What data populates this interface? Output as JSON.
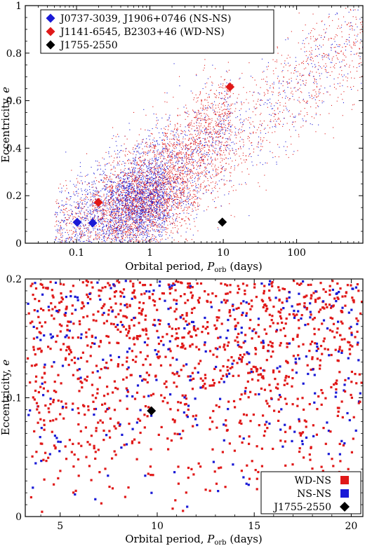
{
  "colors": {
    "ns_ns": "#1a1ad6",
    "wd_ns": "#e01818",
    "j1755": "#000000"
  },
  "chart_data": [
    {
      "type": "scatter",
      "title": "",
      "xlabel": "Orbital period, ",
      "xlabel_sym": "P",
      "xlabel_sub": "orb",
      "xlabel_unit": " (days)",
      "ylabel": "Eccentricity, ",
      "ylabel_sym": "e",
      "xscale": "log",
      "xlim": [
        0.02,
        800
      ],
      "ylim": [
        0,
        1
      ],
      "xticks": [
        0.1,
        1,
        10,
        100
      ],
      "xtick_labels": [
        "0.1",
        "1",
        "10",
        "100"
      ],
      "yticks": [
        0,
        0.2,
        0.4,
        0.6,
        0.8,
        1
      ],
      "ytick_labels": [
        "0",
        "0.2",
        "0.4",
        "0.6",
        "0.8",
        "1"
      ],
      "legend_position": "top-left",
      "legend": [
        {
          "label": "J0737-3039, J1906+0746 (NS-NS)",
          "color": "#1a1ad6",
          "marker": "diamond"
        },
        {
          "label": "J1141-6545, B2303+46 (WD-NS)",
          "color": "#e01818",
          "marker": "diamond"
        },
        {
          "label": "J1755-2550",
          "color": "#000000",
          "marker": "diamond"
        }
      ],
      "series": [
        {
          "name": "J0737-3039, J1906+0746 (NS-NS)",
          "color": "#1a1ad6",
          "x": [
            0.102,
            0.166
          ],
          "y": [
            0.088,
            0.085
          ]
        },
        {
          "name": "J1141-6545, B2303+46 (WD-NS)",
          "color": "#e01818",
          "x": [
            0.198,
            12.34
          ],
          "y": [
            0.172,
            0.658
          ]
        },
        {
          "name": "J1755-2550",
          "color": "#000000",
          "x": [
            9.7
          ],
          "y": [
            0.089
          ]
        }
      ]
    },
    {
      "type": "scatter",
      "title": "",
      "xlabel": "Orbital period, ",
      "xlabel_sym": "P",
      "xlabel_sub": "orb",
      "xlabel_unit": " (days)",
      "ylabel": "Eccentricity, ",
      "ylabel_sym": "e",
      "xscale": "linear",
      "xlim": [
        3.2,
        20.6
      ],
      "ylim": [
        0,
        0.2
      ],
      "xticks": [
        5,
        10,
        15,
        20
      ],
      "xtick_labels": [
        "5",
        "10",
        "15",
        "20"
      ],
      "yticks": [
        0,
        0.1,
        0.2
      ],
      "ytick_labels": [
        "0",
        "0.1",
        "0.2"
      ],
      "legend_position": "bottom-right",
      "legend": [
        {
          "label": "WD-NS",
          "color": "#e01818",
          "marker": "square"
        },
        {
          "label": "NS-NS",
          "color": "#1a1ad6",
          "marker": "square"
        },
        {
          "label": "J1755-2550",
          "color": "#000000",
          "marker": "diamond"
        }
      ],
      "series": [
        {
          "name": "J1755-2550",
          "color": "#000000",
          "x": [
            9.7
          ],
          "y": [
            0.089
          ]
        }
      ]
    }
  ]
}
